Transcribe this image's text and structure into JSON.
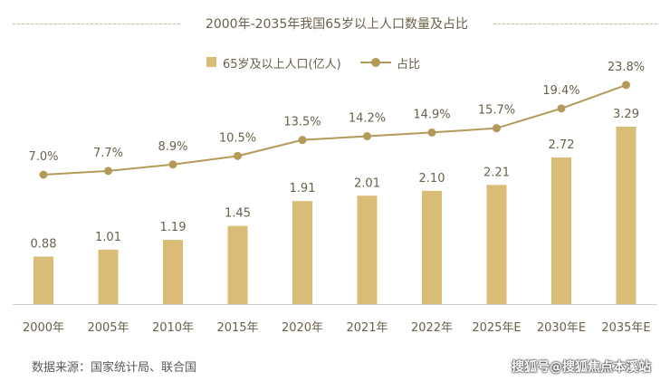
{
  "chart_data": {
    "type": "bar",
    "title": "2000年-2035年我国65岁以上人口数量及占比",
    "categories": [
      "2000年",
      "2005年",
      "2010年",
      "2015年",
      "2020年",
      "2021年",
      "2022年",
      "2025年E",
      "2030年E",
      "2035年E"
    ],
    "series": [
      {
        "name": "65岁及以上人口(亿人)",
        "type": "bar",
        "values": [
          0.88,
          1.01,
          1.19,
          1.45,
          1.91,
          2.01,
          2.1,
          2.21,
          2.72,
          3.29
        ],
        "labels": [
          "0.88",
          "1.01",
          "1.19",
          "1.45",
          "1.91",
          "2.01",
          "2.10",
          "2.21",
          "2.72",
          "3.29"
        ]
      },
      {
        "name": "占比",
        "type": "line",
        "values": [
          7.0,
          7.7,
          8.9,
          10.5,
          13.5,
          14.2,
          14.9,
          15.7,
          19.4,
          23.8
        ],
        "labels": [
          "7.0%",
          "7.7%",
          "8.9%",
          "10.5%",
          "13.5%",
          "14.2%",
          "14.9%",
          "15.7%",
          "19.4%",
          "23.8%"
        ]
      }
    ],
    "legend_position": "top-center",
    "grid": false,
    "colors": {
      "bar": "#d9bd77",
      "line": "#b49a59",
      "text": "#6b6048",
      "axis": "#cfcfcf"
    }
  },
  "source_text": "数据来源：国家统计局、联合国",
  "watermark_text": "搜狐号@搜狐焦点本溪站"
}
